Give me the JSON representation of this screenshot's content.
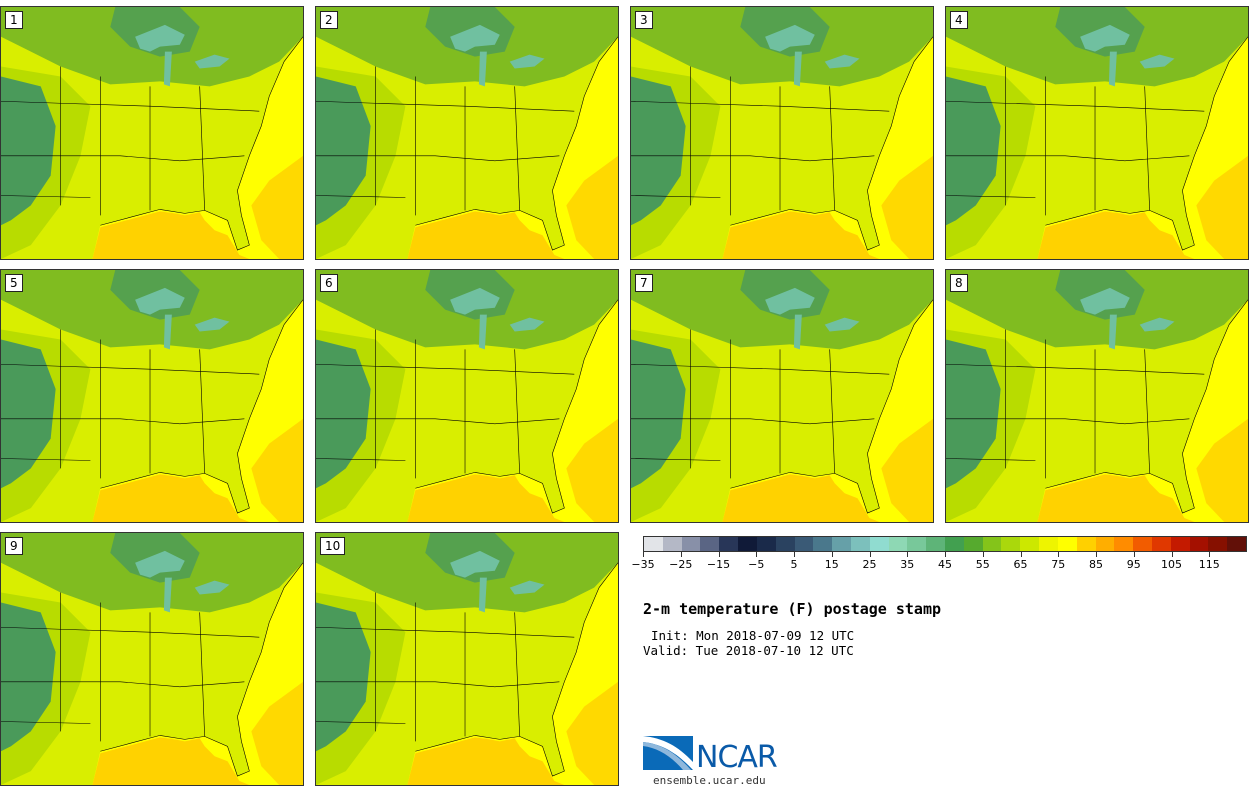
{
  "panels": [
    {
      "label": "1"
    },
    {
      "label": "2"
    },
    {
      "label": "3"
    },
    {
      "label": "4"
    },
    {
      "label": "5"
    },
    {
      "label": "6"
    },
    {
      "label": "7"
    },
    {
      "label": "8"
    },
    {
      "label": "9"
    },
    {
      "label": "10"
    }
  ],
  "colorbar": {
    "colors": [
      "#e2e4e8",
      "#b4b8c6",
      "#8890a8",
      "#5a6584",
      "#283658",
      "#101a38",
      "#1a2a4a",
      "#2a4260",
      "#3a5a76",
      "#4a788c",
      "#66a0a8",
      "#7cc0bc",
      "#90dcd0",
      "#8ed8b4",
      "#78c89a",
      "#5eb478",
      "#42a050",
      "#56aa2e",
      "#84c41a",
      "#aad80c",
      "#cce800",
      "#eef400",
      "#ffff00",
      "#ffd000",
      "#ffae00",
      "#ff8c00",
      "#f25c00",
      "#e03800",
      "#c41a00",
      "#a41000",
      "#861000",
      "#621008"
    ],
    "tick_labels": [
      "−35",
      "−25",
      "−15",
      "−5",
      "5",
      "15",
      "25",
      "35",
      "45",
      "55",
      "65",
      "75",
      "85",
      "95",
      "105",
      "115"
    ]
  },
  "map_colors": {
    "ocean_warm": "#ffd200",
    "ocean": "#ffff00",
    "land": "#d9ee00",
    "land_cool": "#b8dc00",
    "north": "#80bc20",
    "mountain": "#4a9a5a",
    "lakes": "#70c0a0"
  },
  "title": "2-m temperature (F) postage stamp",
  "init": "Init: Mon 2018-07-09 12 UTC",
  "valid": "Valid: Tue 2018-07-10 12 UTC",
  "logo": {
    "text": "NCAR",
    "site": "ensemble.ucar.edu"
  }
}
